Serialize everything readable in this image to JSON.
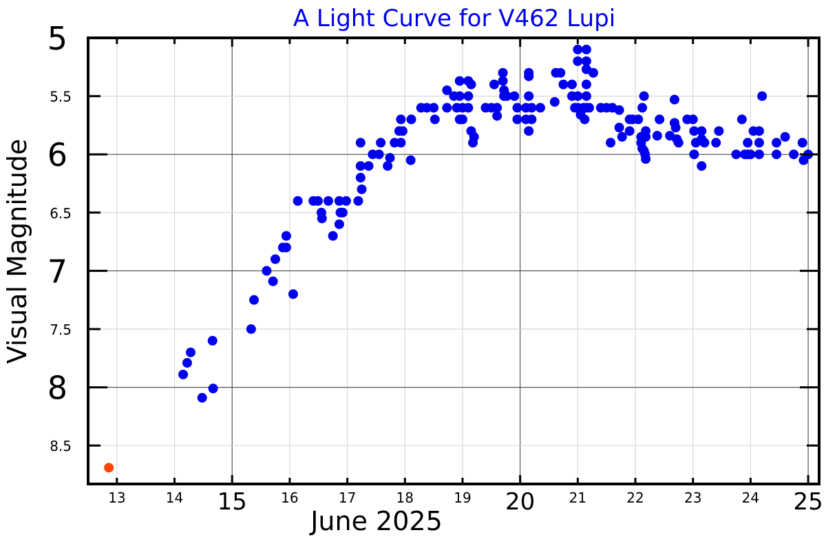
{
  "chart_data": {
    "type": "scatter",
    "title": "A Light Curve for V462 Lupi",
    "xlabel": "June 2025",
    "ylabel": "Visual Magnitude",
    "xlim": [
      12.5,
      25.19
    ],
    "ylim": [
      8.83,
      5.0
    ],
    "y_inverted": true,
    "grid": true,
    "x_major_ticks": [
      "15",
      "20",
      "25"
    ],
    "x_minor_ticks": [
      "13",
      "14",
      "16",
      "17",
      "18",
      "19",
      "21",
      "22",
      "23",
      "24"
    ],
    "y_major_ticks": [
      "5",
      "6",
      "7",
      "8"
    ],
    "y_minor_ticks": [
      "5.5",
      "6.5",
      "7.5",
      "8.5"
    ],
    "colors": {
      "title": "#0000ee",
      "observations": "#0000ee",
      "highlight": "#ff4500"
    },
    "series": [
      {
        "color": "#ff4500",
        "points": [
          [
            12.86,
            8.69
          ]
        ]
      },
      {
        "color": "#0000ee",
        "points": [
          [
            14.15,
            7.89
          ],
          [
            14.22,
            7.79
          ],
          [
            14.28,
            7.7
          ],
          [
            14.48,
            8.09
          ],
          [
            14.66,
            7.6
          ],
          [
            14.67,
            8.01
          ],
          [
            15.33,
            7.5
          ],
          [
            15.38,
            7.25
          ],
          [
            15.6,
            7.0
          ],
          [
            15.71,
            7.09
          ],
          [
            15.75,
            6.9
          ],
          [
            15.88,
            6.8
          ],
          [
            15.94,
            6.7
          ],
          [
            15.94,
            6.8
          ],
          [
            16.06,
            7.2
          ],
          [
            16.14,
            6.4
          ],
          [
            16.41,
            6.4
          ],
          [
            16.49,
            6.4
          ],
          [
            16.55,
            6.5
          ],
          [
            16.56,
            6.55
          ],
          [
            16.67,
            6.4
          ],
          [
            16.75,
            6.7
          ],
          [
            16.86,
            6.4
          ],
          [
            16.86,
            6.6
          ],
          [
            16.88,
            6.5
          ],
          [
            16.92,
            6.5
          ],
          [
            16.98,
            6.4
          ],
          [
            17.19,
            6.4
          ],
          [
            17.23,
            5.9
          ],
          [
            17.23,
            6.1
          ],
          [
            17.23,
            6.2
          ],
          [
            17.25,
            6.3
          ],
          [
            17.37,
            6.1
          ],
          [
            17.44,
            6.0
          ],
          [
            17.55,
            6.0
          ],
          [
            17.58,
            5.9
          ],
          [
            17.7,
            6.1
          ],
          [
            17.74,
            6.03
          ],
          [
            17.82,
            5.9
          ],
          [
            17.9,
            5.8
          ],
          [
            17.93,
            5.9
          ],
          [
            17.93,
            5.7
          ],
          [
            17.96,
            5.8
          ],
          [
            18.1,
            6.05
          ],
          [
            18.11,
            5.7
          ],
          [
            18.28,
            5.6
          ],
          [
            18.38,
            5.6
          ],
          [
            18.5,
            5.6
          ],
          [
            18.52,
            5.7
          ],
          [
            18.73,
            5.45
          ],
          [
            18.73,
            5.6
          ],
          [
            18.85,
            5.5
          ],
          [
            18.95,
            5.37
          ],
          [
            18.95,
            5.5
          ],
          [
            18.9,
            5.6
          ],
          [
            19.0,
            5.6
          ],
          [
            19.1,
            5.6
          ],
          [
            18.95,
            5.7
          ],
          [
            19.0,
            5.7
          ],
          [
            19.1,
            5.37
          ],
          [
            19.1,
            5.5
          ],
          [
            19.15,
            5.4
          ],
          [
            19.15,
            5.8
          ],
          [
            19.2,
            5.85
          ],
          [
            19.18,
            5.9
          ],
          [
            19.4,
            5.6
          ],
          [
            19.5,
            5.6
          ],
          [
            19.55,
            5.4
          ],
          [
            19.6,
            5.6
          ],
          [
            19.6,
            5.67
          ],
          [
            19.7,
            5.3
          ],
          [
            19.7,
            5.37
          ],
          [
            19.72,
            5.45
          ],
          [
            19.72,
            5.5
          ],
          [
            19.77,
            5.5
          ],
          [
            19.9,
            5.5
          ],
          [
            19.95,
            5.6
          ],
          [
            19.95,
            5.7
          ],
          [
            20.1,
            5.6
          ],
          [
            20.1,
            5.7
          ],
          [
            20.15,
            5.3
          ],
          [
            20.15,
            5.33
          ],
          [
            20.15,
            5.5
          ],
          [
            20.15,
            5.8
          ],
          [
            20.2,
            5.6
          ],
          [
            20.2,
            5.7
          ],
          [
            20.35,
            5.6
          ],
          [
            20.6,
            5.55
          ],
          [
            20.62,
            5.3
          ],
          [
            20.7,
            5.3
          ],
          [
            20.75,
            5.4
          ],
          [
            20.9,
            5.4
          ],
          [
            20.9,
            5.5
          ],
          [
            20.95,
            5.6
          ],
          [
            21.0,
            5.1
          ],
          [
            21.0,
            5.2
          ],
          [
            21.0,
            5.5
          ],
          [
            21.0,
            5.6
          ],
          [
            21.05,
            5.63
          ],
          [
            21.05,
            5.66
          ],
          [
            21.1,
            5.6
          ],
          [
            21.12,
            5.7
          ],
          [
            21.15,
            5.1
          ],
          [
            21.15,
            5.2
          ],
          [
            21.15,
            5.27
          ],
          [
            21.15,
            5.4
          ],
          [
            21.15,
            5.5
          ],
          [
            21.15,
            5.6
          ],
          [
            21.2,
            5.6
          ],
          [
            21.27,
            5.3
          ],
          [
            21.4,
            5.6
          ],
          [
            21.5,
            5.6
          ],
          [
            21.6,
            5.6
          ],
          [
            21.72,
            5.62
          ],
          [
            21.57,
            5.9
          ],
          [
            21.72,
            5.77
          ],
          [
            21.77,
            5.85
          ],
          [
            21.9,
            5.7
          ],
          [
            21.9,
            5.8
          ],
          [
            21.95,
            5.7
          ],
          [
            22.05,
            5.7
          ],
          [
            22.12,
            5.6
          ],
          [
            22.15,
            5.5
          ],
          [
            22.1,
            5.85
          ],
          [
            22.1,
            5.9
          ],
          [
            22.12,
            5.95
          ],
          [
            22.15,
            5.97
          ],
          [
            22.17,
            6.0
          ],
          [
            22.18,
            6.04
          ],
          [
            22.18,
            5.8
          ],
          [
            22.18,
            5.85
          ],
          [
            22.38,
            5.84
          ],
          [
            22.42,
            5.7
          ],
          [
            22.6,
            5.84
          ],
          [
            22.68,
            5.53
          ],
          [
            22.68,
            5.73
          ],
          [
            22.7,
            5.77
          ],
          [
            22.72,
            5.87
          ],
          [
            22.75,
            5.9
          ],
          [
            22.9,
            5.7
          ],
          [
            23.0,
            5.7
          ],
          [
            23.02,
            6.0
          ],
          [
            23.02,
            5.8
          ],
          [
            23.05,
            5.9
          ],
          [
            23.15,
            5.8
          ],
          [
            23.15,
            5.87
          ],
          [
            23.15,
            6.1
          ],
          [
            23.2,
            5.9
          ],
          [
            23.4,
            5.9
          ],
          [
            23.45,
            5.8
          ],
          [
            23.75,
            6.0
          ],
          [
            23.85,
            5.7
          ],
          [
            23.9,
            6.0
          ],
          [
            23.95,
            5.9
          ],
          [
            23.95,
            6.0
          ],
          [
            24.0,
            6.0
          ],
          [
            24.05,
            5.8
          ],
          [
            24.15,
            5.8
          ],
          [
            24.15,
            5.9
          ],
          [
            24.15,
            6.0
          ],
          [
            24.2,
            5.5
          ],
          [
            24.45,
            6.0
          ],
          [
            24.45,
            5.9
          ],
          [
            24.6,
            5.85
          ],
          [
            24.75,
            6.0
          ],
          [
            24.9,
            5.9
          ],
          [
            24.92,
            6.05
          ],
          [
            25.0,
            6.0
          ]
        ]
      }
    ]
  }
}
